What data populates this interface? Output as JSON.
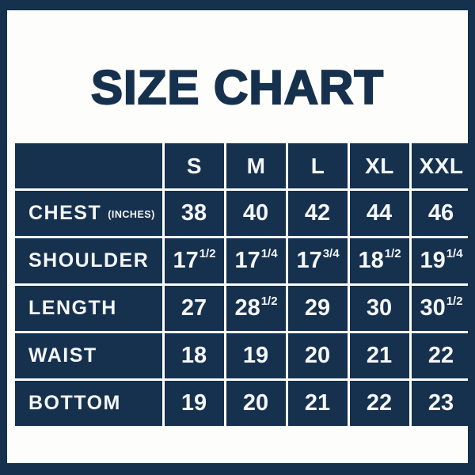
{
  "colors": {
    "navy": "#16314e",
    "background": "#fdfdfb",
    "cell_text": "#f4f6f8"
  },
  "title": "SIZE CHART",
  "table": {
    "sizes": [
      "S",
      "M",
      "L",
      "XL",
      "XXL"
    ],
    "rows": [
      {
        "label": "CHEST",
        "unit": "(INCHES)",
        "cells": [
          {
            "base": "38",
            "frac": ""
          },
          {
            "base": "40",
            "frac": ""
          },
          {
            "base": "42",
            "frac": ""
          },
          {
            "base": "44",
            "frac": ""
          },
          {
            "base": "46",
            "frac": ""
          }
        ]
      },
      {
        "label": "SHOULDER",
        "unit": "",
        "cells": [
          {
            "base": "17",
            "frac": "1/2"
          },
          {
            "base": "17",
            "frac": "1/4"
          },
          {
            "base": "17",
            "frac": "3/4"
          },
          {
            "base": "18",
            "frac": "1/2"
          },
          {
            "base": "19",
            "frac": "1/4"
          }
        ]
      },
      {
        "label": "LENGTH",
        "unit": "",
        "cells": [
          {
            "base": "27",
            "frac": ""
          },
          {
            "base": "28",
            "frac": "1/2"
          },
          {
            "base": "29",
            "frac": ""
          },
          {
            "base": "30",
            "frac": ""
          },
          {
            "base": "30",
            "frac": "1/2"
          }
        ]
      },
      {
        "label": "WAIST",
        "unit": "",
        "cells": [
          {
            "base": "18",
            "frac": ""
          },
          {
            "base": "19",
            "frac": ""
          },
          {
            "base": "20",
            "frac": ""
          },
          {
            "base": "21",
            "frac": ""
          },
          {
            "base": "22",
            "frac": ""
          }
        ]
      },
      {
        "label": "BOTTOM",
        "unit": "",
        "cells": [
          {
            "base": "19",
            "frac": ""
          },
          {
            "base": "20",
            "frac": ""
          },
          {
            "base": "21",
            "frac": ""
          },
          {
            "base": "22",
            "frac": ""
          },
          {
            "base": "23",
            "frac": ""
          }
        ]
      }
    ]
  },
  "chart_data": {
    "type": "table",
    "title": "SIZE CHART",
    "columns": [
      "",
      "S",
      "M",
      "L",
      "XL",
      "XXL"
    ],
    "rows": [
      [
        "CHEST (INCHES)",
        "38",
        "40",
        "42",
        "44",
        "46"
      ],
      [
        "SHOULDER",
        "17 1/2",
        "17 1/4",
        "17 3/4",
        "18 1/2",
        "19 1/4"
      ],
      [
        "LENGTH",
        "27",
        "28 1/2",
        "29",
        "30",
        "30 1/2"
      ],
      [
        "WAIST",
        "18",
        "19",
        "20",
        "21",
        "22"
      ],
      [
        "BOTTOM",
        "19",
        "20",
        "21",
        "22",
        "23"
      ]
    ]
  }
}
